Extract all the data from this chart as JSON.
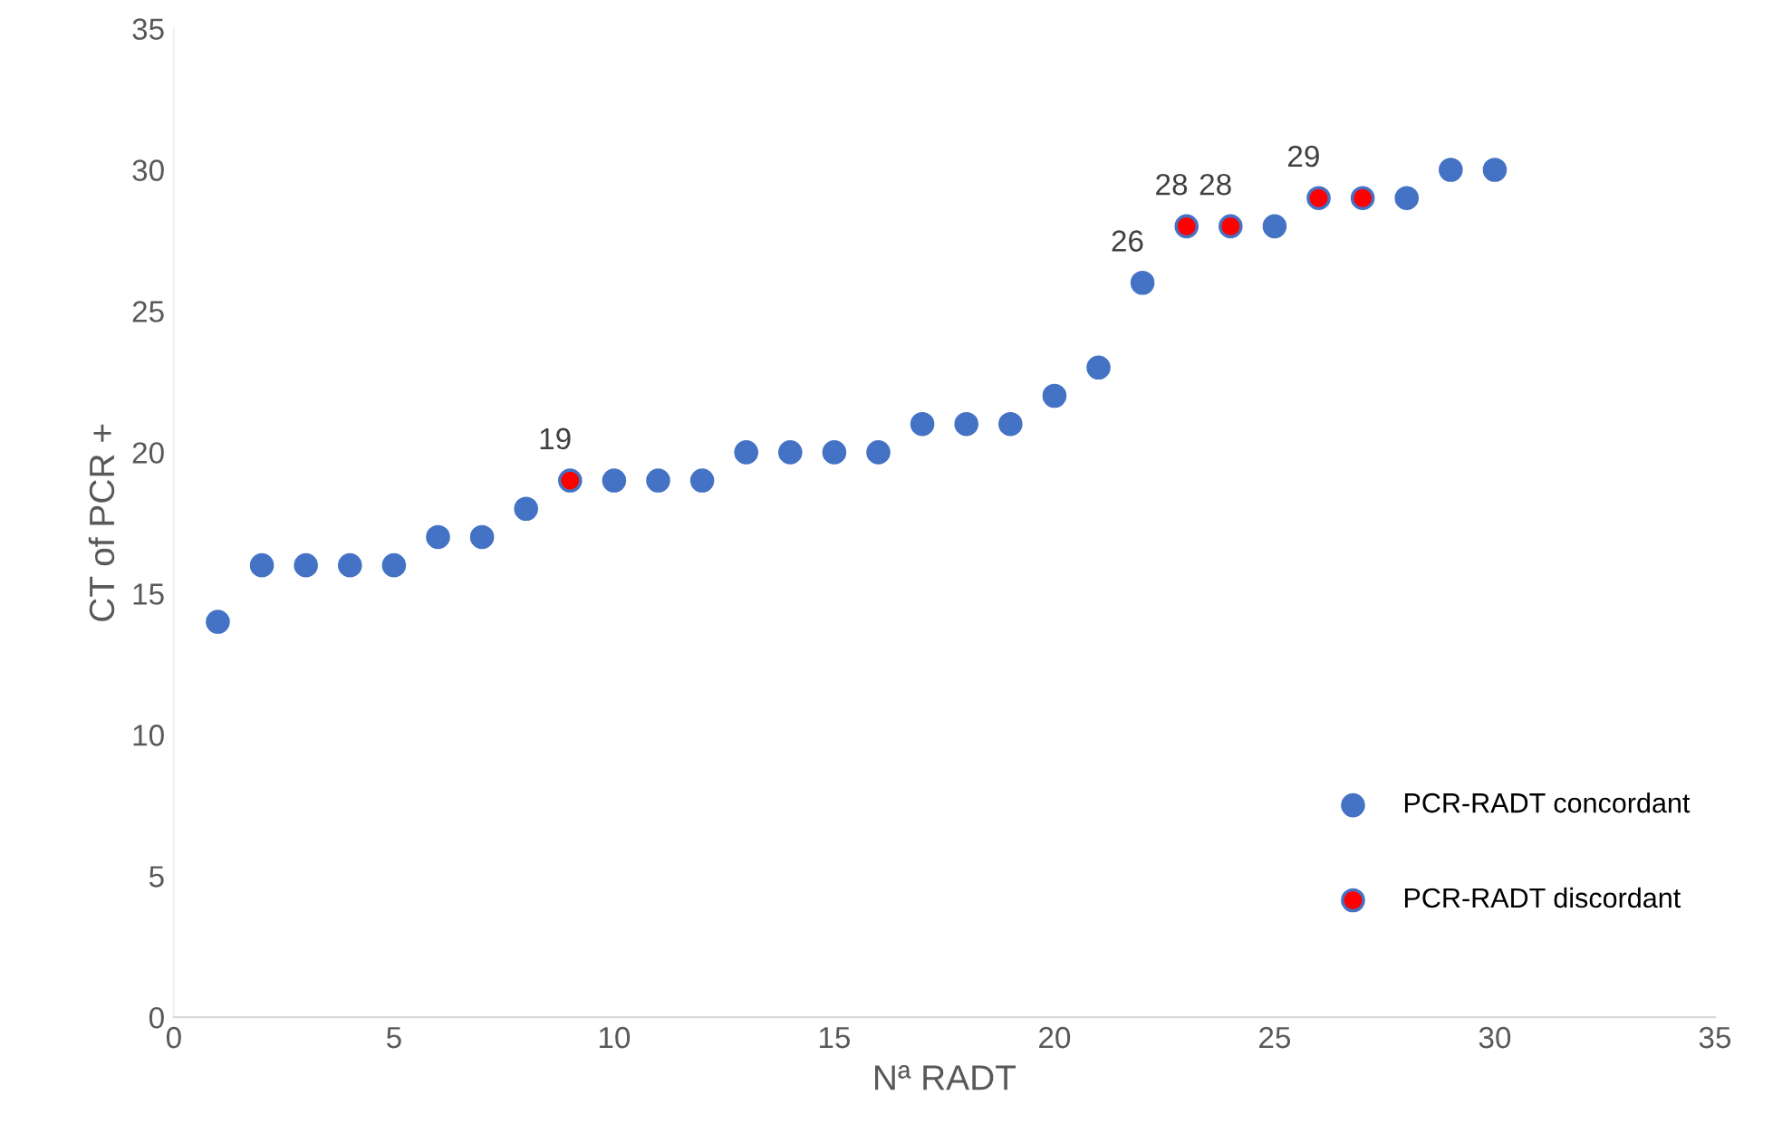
{
  "chart_data": {
    "type": "scatter",
    "xlabel": "Nª RADT",
    "ylabel": "CT of PCR +",
    "xlim": [
      0,
      35
    ],
    "xticks": [
      0,
      5,
      10,
      15,
      20,
      25,
      30,
      35
    ],
    "ylim": [
      0,
      35
    ],
    "yticks": [
      0,
      5,
      10,
      15,
      20,
      25,
      30,
      35
    ],
    "grid": false,
    "legend": "bottom right",
    "marker": "circle",
    "series": [
      {
        "name": "PCR-RADT concordant",
        "color": "#4472c4",
        "x": [
          1,
          2,
          3,
          4,
          5,
          6,
          7,
          8,
          10,
          11,
          12,
          13,
          14,
          15,
          16,
          17,
          18,
          19,
          20,
          21,
          22,
          25,
          28,
          29,
          30
        ],
        "values": [
          14,
          16,
          16,
          16,
          16,
          17,
          17,
          18,
          19,
          19,
          19,
          20,
          20,
          20,
          20,
          21,
          21,
          21,
          22,
          23,
          26,
          28,
          29,
          30,
          30
        ],
        "value_labels": [
          null,
          null,
          null,
          null,
          null,
          null,
          null,
          null,
          null,
          null,
          null,
          null,
          null,
          null,
          null,
          null,
          null,
          null,
          null,
          null,
          "26",
          null,
          null,
          null,
          null
        ]
      },
      {
        "name": "PCR-RADT discordant",
        "color": "#ff0000",
        "x": [
          9,
          23,
          24,
          26,
          27
        ],
        "values": [
          19,
          28,
          28,
          29,
          29
        ],
        "value_labels": [
          "19",
          "28",
          "28",
          "29",
          null
        ]
      }
    ]
  }
}
